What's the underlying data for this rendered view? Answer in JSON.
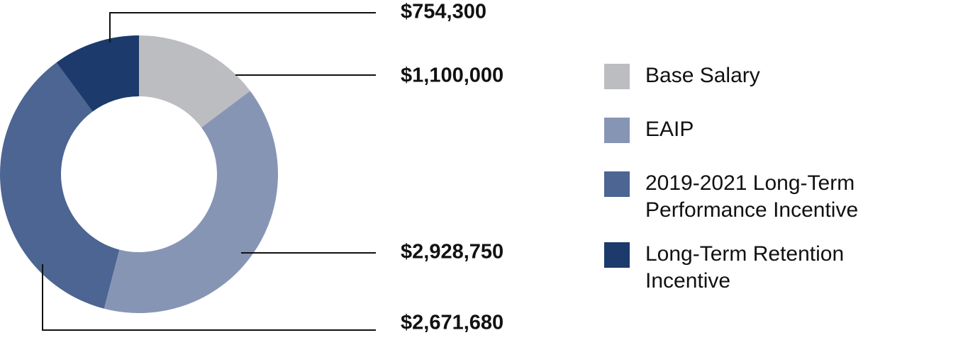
{
  "chart_data": {
    "type": "pie",
    "donut": true,
    "legend_position": "right",
    "slices": [
      {
        "name": "Base Salary",
        "value": 1100000,
        "value_label": "$1,100,000",
        "color": "#bcbdc0"
      },
      {
        "name": "EAIP",
        "value": 2928750,
        "value_label": "$2,928,750",
        "color": "#8795b5"
      },
      {
        "name": "2019-2021 Long-Term\nPerformance Incentive",
        "value": 2671680,
        "value_label": "$2,671,680",
        "color": "#4c6592"
      },
      {
        "name": "Long-Term Retention\nIncentive",
        "value": 754300,
        "value_label": "$754,300",
        "color": "#1c3a6b"
      }
    ]
  }
}
